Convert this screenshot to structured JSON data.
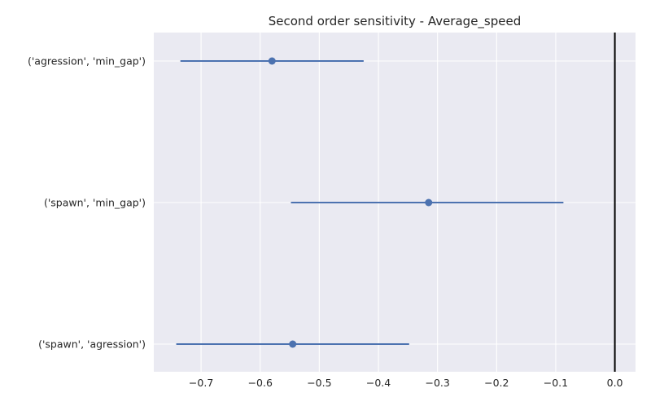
{
  "chart_data": {
    "type": "scatter",
    "title": "Second order sensitivity  -  Average_speed",
    "xlabel": "",
    "ylabel": "",
    "xlim": [
      -0.78,
      0.035
    ],
    "xticks": [
      -0.7,
      -0.6,
      -0.5,
      -0.4,
      -0.3,
      -0.2,
      -0.1,
      0.0
    ],
    "xtick_labels": [
      "−0.7",
      "−0.6",
      "−0.5",
      "−0.4",
      "−0.3",
      "−0.2",
      "−0.1",
      "0.0"
    ],
    "categories": [
      "('agression', 'min_gap')",
      "('spawn', 'min_gap')",
      "('spawn', 'agression')"
    ],
    "values": [
      -0.58,
      -0.315,
      -0.545
    ],
    "ci_low": [
      -0.735,
      -0.548,
      -0.742
    ],
    "ci_high": [
      -0.425,
      -0.087,
      -0.348
    ],
    "reference_line_x": 0.0,
    "grid": true,
    "colors": {
      "background": "#eaeaf2",
      "grid": "#ffffff",
      "series": "#4c72b0",
      "reference": "#000000"
    }
  }
}
